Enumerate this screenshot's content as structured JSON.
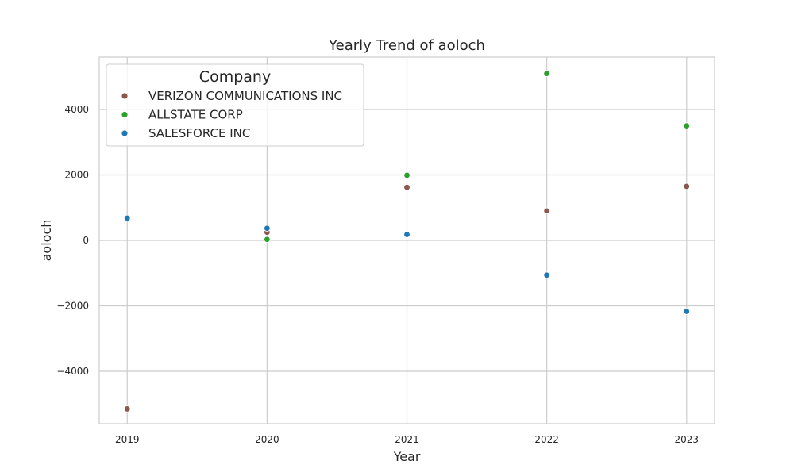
{
  "chart_data": {
    "type": "scatter",
    "title": "Yearly Trend of aoloch",
    "xlabel": "Year",
    "ylabel": "aoloch",
    "x": [
      2019,
      2020,
      2021,
      2022,
      2023
    ],
    "x_tick_labels": [
      "2019",
      "2020",
      "2021",
      "2022",
      "2023"
    ],
    "xlim": [
      2018.8,
      2023.2
    ],
    "ylim": [
      -5600,
      5600
    ],
    "y_ticks": [
      -4000,
      -2000,
      0,
      2000,
      4000
    ],
    "y_tick_labels": [
      "−4000",
      "−2000",
      "0",
      "2000",
      "4000"
    ],
    "grid": true,
    "legend": {
      "title": "Company",
      "placement": "top-left"
    },
    "series": [
      {
        "name": "VERIZON COMMUNICATIONS INC",
        "color": "#8c564b",
        "points": [
          {
            "x": 2019,
            "y": -5150
          },
          {
            "x": 2020,
            "y": 250
          },
          {
            "x": 2021,
            "y": 1620
          },
          {
            "x": 2022,
            "y": 900
          },
          {
            "x": 2023,
            "y": 1650
          }
        ]
      },
      {
        "name": "ALLSTATE CORP",
        "color": "#2ca02c",
        "points": [
          {
            "x": 2020,
            "y": 30
          },
          {
            "x": 2021,
            "y": 1990
          },
          {
            "x": 2022,
            "y": 5100
          },
          {
            "x": 2023,
            "y": 3500
          }
        ]
      },
      {
        "name": "SALESFORCE INC",
        "color": "#1f77b4",
        "points": [
          {
            "x": 2019,
            "y": 680
          },
          {
            "x": 2020,
            "y": 370
          },
          {
            "x": 2021,
            "y": 180
          },
          {
            "x": 2022,
            "y": -1060
          },
          {
            "x": 2023,
            "y": -2170
          }
        ]
      }
    ]
  }
}
